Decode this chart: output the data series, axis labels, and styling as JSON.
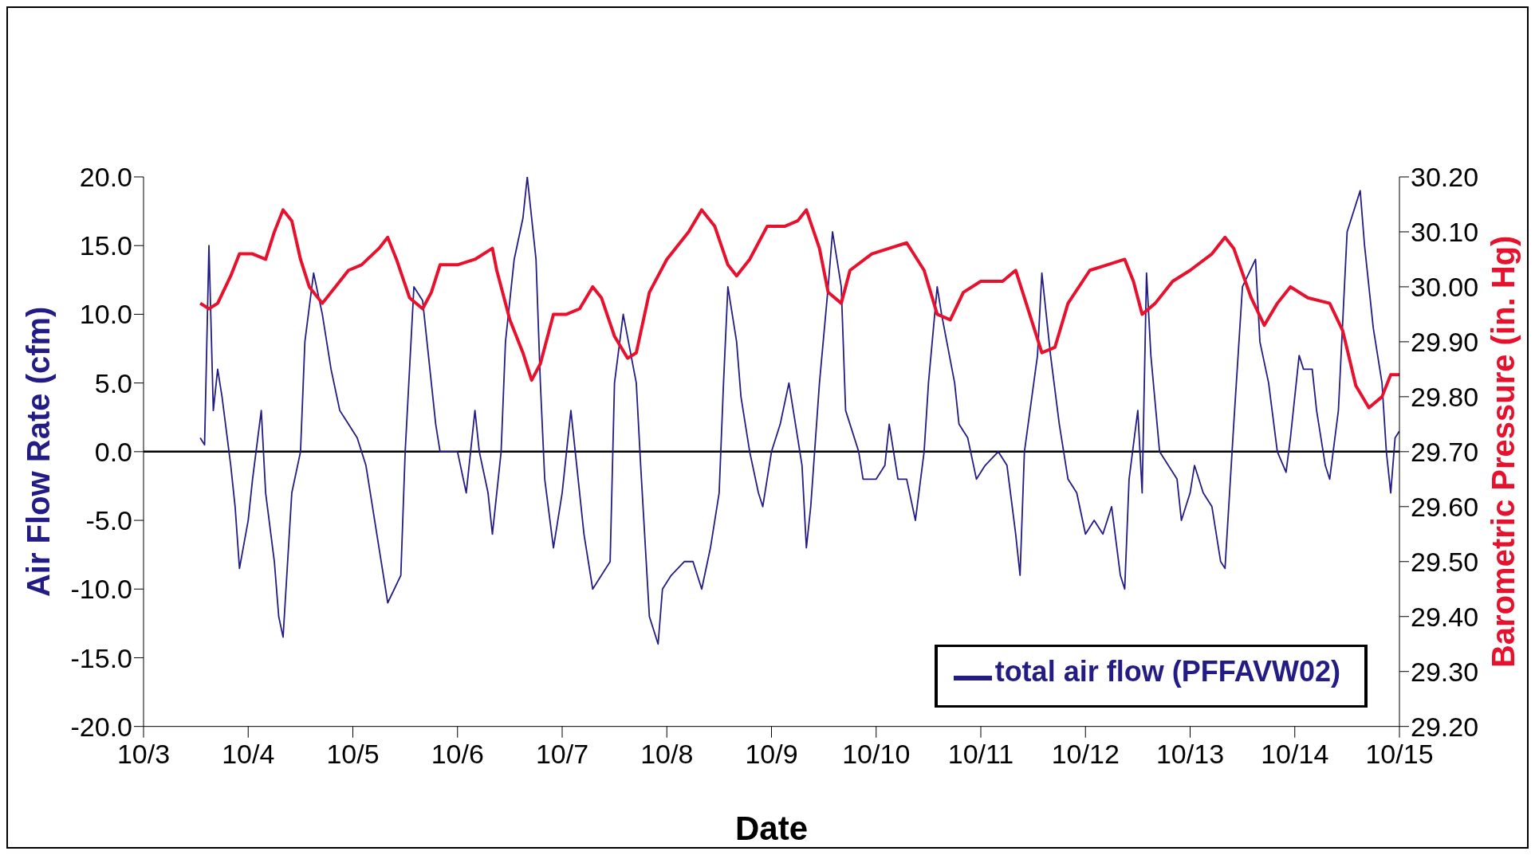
{
  "chart_data": {
    "type": "line",
    "xlabel": "Date",
    "ylabel": "Air Flow Rate (cfm)",
    "y2label": "Barometric Pressure (in. Hg)",
    "xlim": [
      "--10-03",
      "--10-15"
    ],
    "xticks": [
      {
        "value": "--10-03",
        "label": "10/3"
      },
      {
        "value": "--10-04",
        "label": "10/4"
      },
      {
        "value": "--10-05",
        "label": "10/5"
      },
      {
        "value": "--10-06",
        "label": "10/6"
      },
      {
        "value": "--10-07",
        "label": "10/7"
      },
      {
        "value": "--10-08",
        "label": "10/8"
      },
      {
        "value": "--10-09",
        "label": "10/9"
      },
      {
        "value": "--10-10",
        "label": "10/10"
      },
      {
        "value": "--10-11",
        "label": "10/11"
      },
      {
        "value": "--10-12",
        "label": "10/12"
      },
      {
        "value": "--10-13",
        "label": "10/13"
      },
      {
        "value": "--10-14",
        "label": "10/14"
      },
      {
        "value": "--10-15",
        "label": "10/15"
      }
    ],
    "ylim": [
      -20,
      20
    ],
    "yticks": [
      {
        "value": -20,
        "label": "-20.0"
      },
      {
        "value": -15,
        "label": "-15.0"
      },
      {
        "value": -10,
        "label": "-10.0"
      },
      {
        "value": -5,
        "label": "-5.0"
      },
      {
        "value": 0,
        "label": "0.0"
      },
      {
        "value": 5,
        "label": "5.0"
      },
      {
        "value": 10,
        "label": "10.0"
      },
      {
        "value": 15,
        "label": "15.0"
      },
      {
        "value": 20,
        "label": "20.0"
      }
    ],
    "y2lim": [
      29.2,
      30.2
    ],
    "y2ticks": [
      {
        "value": 29.2,
        "label": "29.20"
      },
      {
        "value": 29.3,
        "label": "29.30"
      },
      {
        "value": 29.4,
        "label": "29.40"
      },
      {
        "value": 29.5,
        "label": "29.50"
      },
      {
        "value": 29.6,
        "label": "29.60"
      },
      {
        "value": 29.7,
        "label": "29.70"
      },
      {
        "value": 29.8,
        "label": "29.80"
      },
      {
        "value": 29.9,
        "label": "29.90"
      },
      {
        "value": 30.0,
        "label": "30.00"
      },
      {
        "value": 30.1,
        "label": "30.10"
      },
      {
        "value": 30.2,
        "label": "30.20"
      }
    ],
    "grid": false,
    "legend": "bottom right",
    "marker": "none",
    "line_style": "solid",
    "ref_lines": [
      {
        "axis": "y",
        "value": 0,
        "color": "#000000"
      }
    ],
    "series": [
      {
        "name": "total air flow (PFFAVW02)",
        "color": "#231c84",
        "x": [
          "--10-03T13:00",
          "--10-03T14:00",
          "--10-03T15:00",
          "--10-03T16:00",
          "--10-03T17:00",
          "--10-03T18:00",
          "--10-03T20:00",
          "--10-03T21:00",
          "--10-03T22:00",
          "--10-04T00:00",
          "--10-04T01:00",
          "--10-04T03:00",
          "--10-04T04:00",
          "--10-04T06:00",
          "--10-04T07:00",
          "--10-04T08:00",
          "--10-04T10:00",
          "--10-04T12:00",
          "--10-04T13:00",
          "--10-04T15:00",
          "--10-04T17:00",
          "--10-04T19:00",
          "--10-04T21:00",
          "--10-04T23:00",
          "--10-05T01:00",
          "--10-05T03:00",
          "--10-05T04:00",
          "--10-05T06:00",
          "--10-05T08:00",
          "--10-05T11:00",
          "--10-05T12:00",
          "--10-05T14:00",
          "--10-05T16:00",
          "--10-05T18:00",
          "--10-05T19:00",
          "--10-05T20:00",
          "--10-05T22:00",
          "--10-06T00:00",
          "--10-06T02:00",
          "--10-06T04:00",
          "--10-06T05:00",
          "--10-06T07:00",
          "--10-06T08:00",
          "--10-06T10:00",
          "--10-06T11:00",
          "--10-06T13:00",
          "--10-06T15:00",
          "--10-06T16:00",
          "--10-06T18:00",
          "--10-06T19:00",
          "--10-06T20:00",
          "--10-06T22:00",
          "--10-07T00:00",
          "--10-07T02:00",
          "--10-07T04:00",
          "--10-07T05:00",
          "--10-07T07:00",
          "--10-07T09:00",
          "--10-07T11:00",
          "--10-07T12:00",
          "--10-07T14:00",
          "--10-07T17:00",
          "--10-07T18:00",
          "--10-07T20:00",
          "--10-07T22:00",
          "--10-07T23:00",
          "--10-08T01:00",
          "--10-08T04:00",
          "--10-08T06:00",
          "--10-08T08:00",
          "--10-08T10:00",
          "--10-08T12:00",
          "--10-08T13:00",
          "--10-08T14:00",
          "--10-08T16:00",
          "--10-08T17:00",
          "--10-08T19:00",
          "--10-08T21:00",
          "--10-08T22:00",
          "--10-09T00:00",
          "--10-09T02:00",
          "--10-09T04:00",
          "--10-09T05:00",
          "--10-09T07:00",
          "--10-09T08:00",
          "--10-09T09:00",
          "--10-09T11:00",
          "--10-09T13:00",
          "--10-09T14:00",
          "--10-09T16:00",
          "--10-09T17:00",
          "--10-09T20:00",
          "--10-09T21:00",
          "--10-10T00:00",
          "--10-10T02:00",
          "--10-10T03:00",
          "--10-10T05:00",
          "--10-10T07:00",
          "--10-10T09:00",
          "--10-10T11:00",
          "--10-10T12:00",
          "--10-10T14:00",
          "--10-10T15:00",
          "--10-10T18:00",
          "--10-10T19:00",
          "--10-10T21:00",
          "--10-10T23:00",
          "--10-11T01:00",
          "--10-11T04:00",
          "--10-11T06:00",
          "--10-11T08:00",
          "--10-11T09:00",
          "--10-11T10:00",
          "--10-11T13:00",
          "--10-11T14:00",
          "--10-11T16:00",
          "--10-11T18:00",
          "--10-11T20:00",
          "--10-11T22:00",
          "--10-12T00:00",
          "--10-12T02:00",
          "--10-12T04:00",
          "--10-12T06:00",
          "--10-12T08:00",
          "--10-12T09:00",
          "--10-12T10:00",
          "--10-12T12:00",
          "--10-12T13:00",
          "--10-12T14:00",
          "--10-12T15:00",
          "--10-12T17:00",
          "--10-12T19:00",
          "--10-12T21:00",
          "--10-12T22:00",
          "--10-13T00:00",
          "--10-13T01:00",
          "--10-13T03:00",
          "--10-13T05:00",
          "--10-13T07:00",
          "--10-13T08:00",
          "--10-13T10:00",
          "--10-13T12:00",
          "--10-13T15:00",
          "--10-13T16:00",
          "--10-13T18:00",
          "--10-13T20:00",
          "--10-13T22:00",
          "--10-13T23:00",
          "--10-14T01:00",
          "--10-14T02:00",
          "--10-14T04:00",
          "--10-14T05:00",
          "--10-14T07:00",
          "--10-14T08:00",
          "--10-14T10:00",
          "--10-14T12:00",
          "--10-14T15:00",
          "--10-14T16:00",
          "--10-14T18:00",
          "--10-14T20:00",
          "--10-14T21:00",
          "--10-14T22:00",
          "--10-14T23:00",
          "--10-15T00:00"
        ],
        "values": [
          1.0,
          0.5,
          15,
          3,
          6,
          4,
          -1,
          -4,
          -8.5,
          -5,
          -2,
          3,
          -3,
          -8,
          -12,
          -13.5,
          -3,
          0,
          8,
          13,
          10,
          6,
          3,
          2,
          1,
          -1,
          -3,
          -7,
          -11,
          -9,
          0,
          12,
          11,
          5,
          2,
          0,
          0,
          0,
          -3,
          3,
          0,
          -3,
          -6,
          0,
          8,
          14,
          17,
          20,
          14,
          5,
          -2,
          -7,
          -3,
          3,
          -3,
          -6,
          -10,
          -9,
          -8,
          5,
          10,
          5,
          -1,
          -12,
          -14,
          -10,
          -9,
          -8,
          -8,
          -10,
          -7,
          -3,
          5,
          12,
          8,
          4,
          0,
          -3,
          -4,
          0,
          2,
          5,
          3,
          -1,
          -7,
          -4,
          5,
          12,
          16,
          12,
          3,
          0,
          -2,
          -2,
          -1,
          2,
          -2,
          -2,
          -5,
          0,
          5,
          12,
          10,
          5,
          2,
          1,
          -2,
          -1,
          0,
          -1,
          -6,
          -9,
          0,
          7,
          13,
          7,
          2,
          -2,
          -3,
          -6,
          -5,
          -6,
          -4,
          -9,
          -10,
          -2,
          3,
          -3,
          13,
          7,
          0,
          -1,
          -2,
          -5,
          -3,
          -1,
          -3,
          -4,
          -8,
          -8.5,
          2,
          12,
          14,
          8,
          5,
          0,
          -1.5,
          1,
          7,
          6,
          6,
          3,
          -1,
          -2,
          3,
          16,
          19,
          15,
          9,
          5,
          0,
          -3,
          1,
          1.5
        ]
      },
      {
        "color": "#e8112d",
        "axis": "y2",
        "x": [
          "--10-03T13:00",
          "--10-03T15:00",
          "--10-03T17:00",
          "--10-03T20:00",
          "--10-03T22:00",
          "--10-04T01:00",
          "--10-04T04:00",
          "--10-04T06:00",
          "--10-04T08:00",
          "--10-04T10:00",
          "--10-04T12:00",
          "--10-04T14:00",
          "--10-04T17:00",
          "--10-04T20:00",
          "--10-04T23:00",
          "--10-05T02:00",
          "--10-05T06:00",
          "--10-05T08:00",
          "--10-05T10:00",
          "--10-05T13:00",
          "--10-05T16:00",
          "--10-05T18:00",
          "--10-05T20:00",
          "--10-06T00:00",
          "--10-06T04:00",
          "--10-06T08:00",
          "--10-06T09:00",
          "--10-06T12:00",
          "--10-06T15:00",
          "--10-06T17:00",
          "--10-06T19:00",
          "--10-06T22:00",
          "--10-07T01:00",
          "--10-07T04:00",
          "--10-07T07:00",
          "--10-07T09:00",
          "--10-07T12:00",
          "--10-07T15:00",
          "--10-07T17:00",
          "--10-07T20:00",
          "--10-08T00:00",
          "--10-08T05:00",
          "--10-08T08:00",
          "--10-08T11:00",
          "--10-08T14:00",
          "--10-08T16:00",
          "--10-08T19:00",
          "--10-08T23:00",
          "--10-09T03:00",
          "--10-09T06:00",
          "--10-09T08:00",
          "--10-09T11:00",
          "--10-09T13:00",
          "--10-09T16:00",
          "--10-09T18:00",
          "--10-09T23:00",
          "--10-10T03:00",
          "--10-10T07:00",
          "--10-10T11:00",
          "--10-10T14:00",
          "--10-10T17:00",
          "--10-10T20:00",
          "--10-11T00:00",
          "--10-11T05:00",
          "--10-11T08:00",
          "--10-11T10:00",
          "--10-11T14:00",
          "--10-11T17:00",
          "--10-11T20:00",
          "--10-12T01:00",
          "--10-12T05:00",
          "--10-12T09:00",
          "--10-12T11:00",
          "--10-12T13:00",
          "--10-12T16:00",
          "--10-12T20:00",
          "--10-13T00:00",
          "--10-13T05:00",
          "--10-13T08:00",
          "--10-13T10:00",
          "--10-13T14:00",
          "--10-13T17:00",
          "--10-13T20:00",
          "--10-13T23:00",
          "--10-14T03:00",
          "--10-14T08:00",
          "--10-14T11:00",
          "--10-14T14:00",
          "--10-14T17:00",
          "--10-14T20:00",
          "--10-14T22:00",
          "--10-15T00:00"
        ],
        "values": [
          29.97,
          29.96,
          29.97,
          30.02,
          30.06,
          30.06,
          30.05,
          30.1,
          30.14,
          30.12,
          30.05,
          30.0,
          29.97,
          30.0,
          30.03,
          30.04,
          30.07,
          30.09,
          30.05,
          29.98,
          29.96,
          29.99,
          30.04,
          30.04,
          30.05,
          30.07,
          30.03,
          29.94,
          29.88,
          29.83,
          29.86,
          29.95,
          29.95,
          29.96,
          30.0,
          29.98,
          29.91,
          29.87,
          29.88,
          29.99,
          30.05,
          30.1,
          30.14,
          30.11,
          30.04,
          30.02,
          30.05,
          30.11,
          30.11,
          30.12,
          30.14,
          30.07,
          29.99,
          29.97,
          30.03,
          30.06,
          30.07,
          30.08,
          30.03,
          29.95,
          29.94,
          29.99,
          30.01,
          30.01,
          30.03,
          29.98,
          29.88,
          29.89,
          29.97,
          30.03,
          30.04,
          30.05,
          30.01,
          29.95,
          29.97,
          30.01,
          30.03,
          30.06,
          30.09,
          30.07,
          29.98,
          29.93,
          29.97,
          30.0,
          29.98,
          29.97,
          29.92,
          29.82,
          29.78,
          29.8,
          29.84,
          29.84
        ]
      }
    ]
  }
}
